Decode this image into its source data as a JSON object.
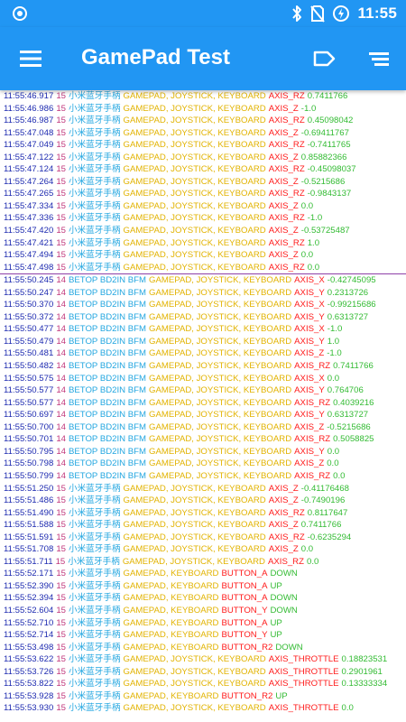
{
  "status_bar": {
    "time": "11:55"
  },
  "app_bar": {
    "title": "GamePad Test"
  },
  "log_before": [
    [
      "11:55:46.917",
      "15",
      "小米蓝牙手柄",
      "GAMEPAD, JOYSTICK, KEYBOARD",
      "AXIS_RZ",
      "0.7411766"
    ],
    [
      "11:55:46.986",
      "15",
      "小米蓝牙手柄",
      "GAMEPAD, JOYSTICK, KEYBOARD",
      "AXIS_Z",
      "-1.0"
    ],
    [
      "11:55:46.987",
      "15",
      "小米蓝牙手柄",
      "GAMEPAD, JOYSTICK, KEYBOARD",
      "AXIS_RZ",
      "0.45098042"
    ],
    [
      "11:55:47.048",
      "15",
      "小米蓝牙手柄",
      "GAMEPAD, JOYSTICK, KEYBOARD",
      "AXIS_Z",
      "-0.69411767"
    ],
    [
      "11:55:47.049",
      "15",
      "小米蓝牙手柄",
      "GAMEPAD, JOYSTICK, KEYBOARD",
      "AXIS_RZ",
      "-0.7411765"
    ],
    [
      "11:55:47.122",
      "15",
      "小米蓝牙手柄",
      "GAMEPAD, JOYSTICK, KEYBOARD",
      "AXIS_Z",
      "0.85882366"
    ],
    [
      "11:55:47.124",
      "15",
      "小米蓝牙手柄",
      "GAMEPAD, JOYSTICK, KEYBOARD",
      "AXIS_RZ",
      "-0.45098037"
    ],
    [
      "11:55:47.264",
      "15",
      "小米蓝牙手柄",
      "GAMEPAD, JOYSTICK, KEYBOARD",
      "AXIS_Z",
      "-0.5215686"
    ],
    [
      "11:55:47.265",
      "15",
      "小米蓝牙手柄",
      "GAMEPAD, JOYSTICK, KEYBOARD",
      "AXIS_RZ",
      "-0.9843137"
    ],
    [
      "11:55:47.334",
      "15",
      "小米蓝牙手柄",
      "GAMEPAD, JOYSTICK, KEYBOARD",
      "AXIS_Z",
      "0.0"
    ],
    [
      "11:55:47.336",
      "15",
      "小米蓝牙手柄",
      "GAMEPAD, JOYSTICK, KEYBOARD",
      "AXIS_RZ",
      "-1.0"
    ],
    [
      "11:55:47.420",
      "15",
      "小米蓝牙手柄",
      "GAMEPAD, JOYSTICK, KEYBOARD",
      "AXIS_Z",
      "-0.53725487"
    ],
    [
      "11:55:47.421",
      "15",
      "小米蓝牙手柄",
      "GAMEPAD, JOYSTICK, KEYBOARD",
      "AXIS_RZ",
      "1.0"
    ],
    [
      "11:55:47.494",
      "15",
      "小米蓝牙手柄",
      "GAMEPAD, JOYSTICK, KEYBOARD",
      "AXIS_Z",
      "0.0"
    ],
    [
      "11:55:47.498",
      "15",
      "小米蓝牙手柄",
      "GAMEPAD, JOYSTICK, KEYBOARD",
      "AXIS_RZ",
      "0.0"
    ]
  ],
  "log_after": [
    [
      "11:55:50.245",
      "14",
      "BETOP BD2IN BFM",
      "GAMEPAD, JOYSTICK, KEYBOARD",
      "AXIS_X",
      "-0.42745095"
    ],
    [
      "11:55:50.247",
      "14",
      "BETOP BD2IN BFM",
      "GAMEPAD, JOYSTICK, KEYBOARD",
      "AXIS_Y",
      "0.2313726"
    ],
    [
      "11:55:50.370",
      "14",
      "BETOP BD2IN BFM",
      "GAMEPAD, JOYSTICK, KEYBOARD",
      "AXIS_X",
      "-0.99215686"
    ],
    [
      "11:55:50.372",
      "14",
      "BETOP BD2IN BFM",
      "GAMEPAD, JOYSTICK, KEYBOARD",
      "AXIS_Y",
      "0.6313727"
    ],
    [
      "11:55:50.477",
      "14",
      "BETOP BD2IN BFM",
      "GAMEPAD, JOYSTICK, KEYBOARD",
      "AXIS_X",
      "-1.0"
    ],
    [
      "11:55:50.479",
      "14",
      "BETOP BD2IN BFM",
      "GAMEPAD, JOYSTICK, KEYBOARD",
      "AXIS_Y",
      "1.0"
    ],
    [
      "11:55:50.481",
      "14",
      "BETOP BD2IN BFM",
      "GAMEPAD, JOYSTICK, KEYBOARD",
      "AXIS_Z",
      "-1.0"
    ],
    [
      "11:55:50.482",
      "14",
      "BETOP BD2IN BFM",
      "GAMEPAD, JOYSTICK, KEYBOARD",
      "AXIS_RZ",
      "0.7411766"
    ],
    [
      "11:55:50.575",
      "14",
      "BETOP BD2IN BFM",
      "GAMEPAD, JOYSTICK, KEYBOARD",
      "AXIS_X",
      "0.0"
    ],
    [
      "11:55:50.577",
      "14",
      "BETOP BD2IN BFM",
      "GAMEPAD, JOYSTICK, KEYBOARD",
      "AXIS_Y",
      "0.764706"
    ],
    [
      "11:55:50.577",
      "14",
      "BETOP BD2IN BFM",
      "GAMEPAD, JOYSTICK, KEYBOARD",
      "AXIS_RZ",
      "0.4039216"
    ],
    [
      "11:55:50.697",
      "14",
      "BETOP BD2IN BFM",
      "GAMEPAD, JOYSTICK, KEYBOARD",
      "AXIS_Y",
      "0.6313727"
    ],
    [
      "11:55:50.700",
      "14",
      "BETOP BD2IN BFM",
      "GAMEPAD, JOYSTICK, KEYBOARD",
      "AXIS_Z",
      "-0.5215686"
    ],
    [
      "11:55:50.701",
      "14",
      "BETOP BD2IN BFM",
      "GAMEPAD, JOYSTICK, KEYBOARD",
      "AXIS_RZ",
      "0.5058825"
    ],
    [
      "11:55:50.795",
      "14",
      "BETOP BD2IN BFM",
      "GAMEPAD, JOYSTICK, KEYBOARD",
      "AXIS_Y",
      "0.0"
    ],
    [
      "11:55:50.798",
      "14",
      "BETOP BD2IN BFM",
      "GAMEPAD, JOYSTICK, KEYBOARD",
      "AXIS_Z",
      "0.0"
    ],
    [
      "11:55:50.799",
      "14",
      "BETOP BD2IN BFM",
      "GAMEPAD, JOYSTICK, KEYBOARD",
      "AXIS_RZ",
      "0.0"
    ],
    [
      "11:55:51.250",
      "15",
      "小米蓝牙手柄",
      "GAMEPAD, JOYSTICK, KEYBOARD",
      "AXIS_Z",
      "-0.41176468"
    ],
    [
      "11:55:51.486",
      "15",
      "小米蓝牙手柄",
      "GAMEPAD, JOYSTICK, KEYBOARD",
      "AXIS_Z",
      "-0.7490196"
    ],
    [
      "11:55:51.490",
      "15",
      "小米蓝牙手柄",
      "GAMEPAD, JOYSTICK, KEYBOARD",
      "AXIS_RZ",
      "0.8117647"
    ],
    [
      "11:55:51.588",
      "15",
      "小米蓝牙手柄",
      "GAMEPAD, JOYSTICK, KEYBOARD",
      "AXIS_Z",
      "0.7411766"
    ],
    [
      "11:55:51.591",
      "15",
      "小米蓝牙手柄",
      "GAMEPAD, JOYSTICK, KEYBOARD",
      "AXIS_RZ",
      "-0.6235294"
    ],
    [
      "11:55:51.708",
      "15",
      "小米蓝牙手柄",
      "GAMEPAD, JOYSTICK, KEYBOARD",
      "AXIS_Z",
      "0.0"
    ],
    [
      "11:55:51.711",
      "15",
      "小米蓝牙手柄",
      "GAMEPAD, JOYSTICK, KEYBOARD",
      "AXIS_RZ",
      "0.0"
    ],
    [
      "11:55:52.171",
      "15",
      "小米蓝牙手柄",
      "GAMEPAD, KEYBOARD",
      "BUTTON_A",
      "DOWN"
    ],
    [
      "11:55:52.390",
      "15",
      "小米蓝牙手柄",
      "GAMEPAD, KEYBOARD",
      "BUTTON_A",
      "UP"
    ],
    [
      "11:55:52.394",
      "15",
      "小米蓝牙手柄",
      "GAMEPAD, KEYBOARD",
      "BUTTON_A",
      "DOWN"
    ],
    [
      "11:55:52.604",
      "15",
      "小米蓝牙手柄",
      "GAMEPAD, KEYBOARD",
      "BUTTON_Y",
      "DOWN"
    ],
    [
      "11:55:52.710",
      "15",
      "小米蓝牙手柄",
      "GAMEPAD, KEYBOARD",
      "BUTTON_A",
      "UP"
    ],
    [
      "11:55:52.714",
      "15",
      "小米蓝牙手柄",
      "GAMEPAD, KEYBOARD",
      "BUTTON_Y",
      "UP"
    ],
    [
      "11:55:53.498",
      "15",
      "小米蓝牙手柄",
      "GAMEPAD, KEYBOARD",
      "BUTTON_R2",
      "DOWN"
    ],
    [
      "11:55:53.622",
      "15",
      "小米蓝牙手柄",
      "GAMEPAD, JOYSTICK, KEYBOARD",
      "AXIS_THROTTLE",
      "0.18823531"
    ],
    [
      "11:55:53.726",
      "15",
      "小米蓝牙手柄",
      "GAMEPAD, JOYSTICK, KEYBOARD",
      "AXIS_THROTTLE",
      "0.2901961"
    ],
    [
      "11:55:53.822",
      "15",
      "小米蓝牙手柄",
      "GAMEPAD, JOYSTICK, KEYBOARD",
      "AXIS_THROTTLE",
      "0.13333334"
    ],
    [
      "11:55:53.928",
      "15",
      "小米蓝牙手柄",
      "GAMEPAD, KEYBOARD",
      "BUTTON_R2",
      "UP"
    ],
    [
      "11:55:53.930",
      "15",
      "小米蓝牙手柄",
      "GAMEPAD, JOYSTICK, KEYBOARD",
      "AXIS_THROTTLE",
      "0.0"
    ]
  ],
  "colors": {
    "app_bar": "#2196F3",
    "timestamp": "#1e2bb0",
    "device_id": "#c0357a",
    "device_name": "#22a6e0",
    "sources": "#e2b300",
    "event": "#ff1a1a",
    "value": "#33bb33",
    "separator": "#8e3fa8"
  },
  "icons": {
    "status_left": "target-icon",
    "bluetooth": "bluetooth-icon",
    "no_sim": "no-sim-icon",
    "battery": "battery-charging-icon",
    "menu": "menu-icon",
    "label": "label-icon",
    "sort": "sort-icon"
  }
}
